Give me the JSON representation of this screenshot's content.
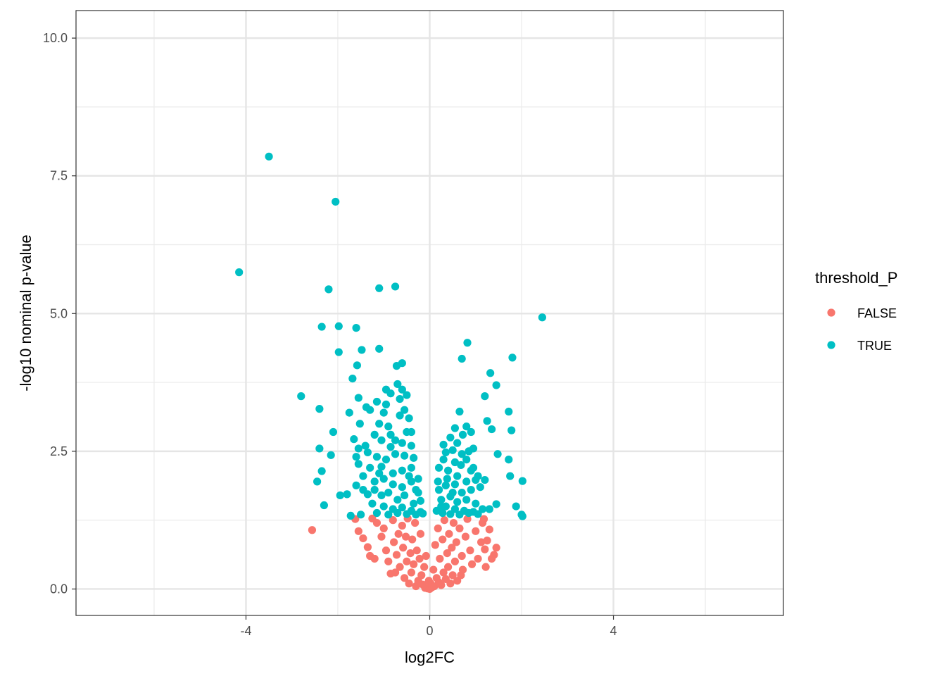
{
  "chart_data": {
    "type": "scatter",
    "title": "",
    "xlabel": "log2FC",
    "ylabel": "-log10 nominal p-value",
    "xlim": [
      -7.7,
      7.7
    ],
    "ylim": [
      -0.48,
      10.5
    ],
    "x_ticks": [
      -4,
      0,
      4
    ],
    "x_tick_labels": [
      "-4",
      "0",
      "4"
    ],
    "x_minor_ticks": [
      -6,
      -2,
      2,
      6
    ],
    "y_ticks": [
      0,
      2.5,
      5,
      7.5,
      10
    ],
    "y_tick_labels": [
      "0.0",
      "2.5",
      "5.0",
      "7.5",
      "10.0"
    ],
    "y_minor_ticks": [
      1.25,
      3.75,
      6.25,
      8.75
    ],
    "grid": true,
    "legend": {
      "title": "threshold_P",
      "position": "right",
      "entries": [
        {
          "label": "FALSE",
          "color": "#F8766D"
        },
        {
          "label": "TRUE",
          "color": "#00BFC4"
        }
      ]
    },
    "series": [
      {
        "name": "FALSE",
        "color": "#F8766D",
        "points": [
          [
            -2.56,
            1.07
          ],
          [
            -1.62,
            1.27
          ],
          [
            -1.55,
            1.05
          ],
          [
            -1.45,
            0.92
          ],
          [
            -1.35,
            0.76
          ],
          [
            -1.3,
            0.6
          ],
          [
            -1.2,
            0.55
          ],
          [
            -1.15,
            1.2
          ],
          [
            -1.05,
            0.95
          ],
          [
            -1.0,
            1.1
          ],
          [
            -0.95,
            0.7
          ],
          [
            -0.9,
            0.5
          ],
          [
            -0.85,
            0.28
          ],
          [
            -0.8,
            1.25
          ],
          [
            -0.78,
            0.85
          ],
          [
            -0.72,
            0.62
          ],
          [
            -0.68,
            1.0
          ],
          [
            -0.65,
            0.4
          ],
          [
            -0.6,
            1.15
          ],
          [
            -0.58,
            0.75
          ],
          [
            -0.55,
            0.2
          ],
          [
            -0.52,
            0.95
          ],
          [
            -0.5,
            0.5
          ],
          [
            -0.48,
            1.28
          ],
          [
            -0.45,
            0.1
          ],
          [
            -0.42,
            0.65
          ],
          [
            -0.4,
            0.3
          ],
          [
            -0.38,
            0.9
          ],
          [
            -0.35,
            0.45
          ],
          [
            -0.32,
            1.2
          ],
          [
            -0.3,
            0.05
          ],
          [
            -0.28,
            0.7
          ],
          [
            -0.25,
            0.15
          ],
          [
            -0.22,
            0.55
          ],
          [
            -0.2,
            1.0
          ],
          [
            -0.18,
            0.25
          ],
          [
            -0.15,
            0.08
          ],
          [
            -0.12,
            0.4
          ],
          [
            -0.1,
            0.02
          ],
          [
            -0.08,
            0.6
          ],
          [
            -0.05,
            0.01
          ],
          [
            -0.02,
            0.15
          ],
          [
            0.0,
            0.0
          ],
          [
            0.02,
            0.1
          ],
          [
            0.05,
            0.03
          ],
          [
            0.08,
            0.35
          ],
          [
            0.1,
            0.05
          ],
          [
            0.12,
            0.8
          ],
          [
            0.15,
            0.2
          ],
          [
            0.18,
            1.1
          ],
          [
            0.2,
            0.12
          ],
          [
            0.22,
            0.55
          ],
          [
            0.25,
            0.07
          ],
          [
            0.28,
            0.9
          ],
          [
            0.3,
            0.3
          ],
          [
            0.32,
            1.25
          ],
          [
            0.35,
            0.18
          ],
          [
            0.38,
            0.65
          ],
          [
            0.4,
            0.4
          ],
          [
            0.42,
            1.0
          ],
          [
            0.45,
            0.1
          ],
          [
            0.48,
            0.75
          ],
          [
            0.5,
            0.25
          ],
          [
            0.52,
            1.2
          ],
          [
            0.55,
            0.5
          ],
          [
            0.58,
            0.85
          ],
          [
            0.6,
            0.15
          ],
          [
            0.65,
            1.1
          ],
          [
            0.7,
            0.6
          ],
          [
            0.72,
            0.35
          ],
          [
            0.78,
            0.95
          ],
          [
            0.82,
            1.27
          ],
          [
            0.88,
            0.7
          ],
          [
            0.92,
            0.45
          ],
          [
            1.0,
            1.05
          ],
          [
            1.05,
            0.55
          ],
          [
            1.12,
            0.85
          ],
          [
            1.15,
            1.2
          ],
          [
            1.2,
            0.72
          ],
          [
            1.25,
            0.88
          ],
          [
            1.3,
            1.08
          ],
          [
            1.35,
            0.55
          ],
          [
            1.4,
            0.62
          ],
          [
            1.45,
            0.75
          ],
          [
            1.18,
            1.27
          ],
          [
            1.22,
            0.4
          ],
          [
            -1.25,
            1.28
          ],
          [
            -0.75,
            0.3
          ],
          [
            0.68,
            0.25
          ]
        ]
      },
      {
        "name": "TRUE",
        "color": "#00BFC4",
        "points": [
          [
            -3.5,
            7.85
          ],
          [
            -2.05,
            7.03
          ],
          [
            -4.15,
            5.75
          ],
          [
            -2.2,
            5.44
          ],
          [
            -1.1,
            5.46
          ],
          [
            -0.75,
            5.49
          ],
          [
            -2.35,
            4.76
          ],
          [
            -1.98,
            4.77
          ],
          [
            -1.6,
            4.74
          ],
          [
            -1.48,
            4.34
          ],
          [
            -1.1,
            4.36
          ],
          [
            -1.98,
            4.3
          ],
          [
            -0.6,
            4.1
          ],
          [
            -0.72,
            4.05
          ],
          [
            -1.58,
            4.06
          ],
          [
            -1.68,
            3.82
          ],
          [
            -2.8,
            3.5
          ],
          [
            -2.4,
            3.27
          ],
          [
            -1.55,
            3.47
          ],
          [
            -1.38,
            3.3
          ],
          [
            -1.3,
            3.25
          ],
          [
            -1.75,
            3.2
          ],
          [
            -1.15,
            3.4
          ],
          [
            -0.95,
            3.62
          ],
          [
            -0.85,
            3.55
          ],
          [
            -0.7,
            3.72
          ],
          [
            -0.6,
            3.62
          ],
          [
            -0.5,
            3.52
          ],
          [
            -0.95,
            3.35
          ],
          [
            -1.0,
            3.2
          ],
          [
            -1.52,
            3.0
          ],
          [
            -1.1,
            3.0
          ],
          [
            -0.9,
            2.95
          ],
          [
            -0.65,
            3.15
          ],
          [
            -0.55,
            3.25
          ],
          [
            -0.45,
            3.1
          ],
          [
            -0.4,
            2.85
          ],
          [
            -2.1,
            2.85
          ],
          [
            -1.65,
            2.72
          ],
          [
            -1.55,
            2.55
          ],
          [
            -1.4,
            2.6
          ],
          [
            -1.2,
            2.8
          ],
          [
            -1.05,
            2.7
          ],
          [
            -0.85,
            2.8
          ],
          [
            -0.6,
            2.65
          ],
          [
            -0.4,
            2.6
          ],
          [
            -2.4,
            2.55
          ],
          [
            -2.15,
            2.43
          ],
          [
            -1.6,
            2.4
          ],
          [
            -1.35,
            2.48
          ],
          [
            -1.15,
            2.4
          ],
          [
            -0.95,
            2.35
          ],
          [
            -0.75,
            2.45
          ],
          [
            -0.55,
            2.42
          ],
          [
            -0.35,
            2.38
          ],
          [
            -1.55,
            2.27
          ],
          [
            -1.3,
            2.2
          ],
          [
            -1.05,
            2.22
          ],
          [
            -0.8,
            2.1
          ],
          [
            -0.6,
            2.15
          ],
          [
            -0.4,
            2.2
          ],
          [
            -0.25,
            2.0
          ],
          [
            -2.35,
            2.14
          ],
          [
            -1.45,
            2.05
          ],
          [
            -1.2,
            1.95
          ],
          [
            -1.0,
            2.0
          ],
          [
            -0.8,
            1.9
          ],
          [
            -0.6,
            1.85
          ],
          [
            -0.4,
            1.95
          ],
          [
            -0.25,
            1.75
          ],
          [
            -2.45,
            1.95
          ],
          [
            -1.6,
            1.88
          ],
          [
            -1.45,
            1.8
          ],
          [
            -1.35,
            1.72
          ],
          [
            -1.2,
            1.8
          ],
          [
            -1.05,
            1.7
          ],
          [
            -0.9,
            1.75
          ],
          [
            -0.7,
            1.62
          ],
          [
            -0.55,
            1.7
          ],
          [
            -0.35,
            1.55
          ],
          [
            -0.2,
            1.6
          ],
          [
            -1.95,
            1.7
          ],
          [
            -1.8,
            1.72
          ],
          [
            -1.25,
            1.55
          ],
          [
            -1.0,
            1.5
          ],
          [
            -0.8,
            1.45
          ],
          [
            -0.6,
            1.48
          ],
          [
            -0.4,
            1.42
          ],
          [
            -0.2,
            1.4
          ],
          [
            -2.3,
            1.52
          ],
          [
            -1.5,
            1.35
          ],
          [
            -1.15,
            1.38
          ],
          [
            -0.9,
            1.35
          ],
          [
            -0.7,
            1.38
          ],
          [
            -0.5,
            1.36
          ],
          [
            -0.3,
            1.35
          ],
          [
            -0.15,
            1.37
          ],
          [
            -1.72,
            1.33
          ],
          [
            -0.85,
            2.58
          ],
          [
            -0.65,
            3.45
          ],
          [
            -0.5,
            2.85
          ],
          [
            -0.45,
            2.05
          ],
          [
            -0.3,
            1.8
          ],
          [
            -0.75,
            2.7
          ],
          [
            -1.1,
            2.1
          ],
          [
            2.45,
            4.93
          ],
          [
            0.82,
            4.47
          ],
          [
            0.7,
            4.18
          ],
          [
            1.8,
            4.2
          ],
          [
            1.32,
            3.92
          ],
          [
            1.45,
            3.7
          ],
          [
            1.2,
            3.5
          ],
          [
            0.65,
            3.22
          ],
          [
            1.72,
            3.22
          ],
          [
            1.25,
            3.05
          ],
          [
            0.55,
            2.92
          ],
          [
            0.8,
            2.95
          ],
          [
            1.35,
            2.9
          ],
          [
            1.78,
            2.88
          ],
          [
            0.9,
            2.85
          ],
          [
            0.72,
            2.8
          ],
          [
            0.45,
            2.75
          ],
          [
            0.6,
            2.65
          ],
          [
            0.3,
            2.62
          ],
          [
            0.95,
            2.55
          ],
          [
            0.85,
            2.5
          ],
          [
            0.7,
            2.45
          ],
          [
            0.5,
            2.52
          ],
          [
            0.35,
            2.48
          ],
          [
            1.48,
            2.45
          ],
          [
            1.72,
            2.35
          ],
          [
            0.8,
            2.35
          ],
          [
            0.55,
            2.3
          ],
          [
            0.3,
            2.35
          ],
          [
            0.2,
            2.2
          ],
          [
            0.68,
            2.25
          ],
          [
            0.9,
            2.15
          ],
          [
            0.4,
            2.15
          ],
          [
            0.6,
            2.05
          ],
          [
            0.95,
            2.2
          ],
          [
            1.05,
            2.05
          ],
          [
            1.75,
            2.05
          ],
          [
            2.02,
            1.96
          ],
          [
            1.2,
            1.98
          ],
          [
            1.0,
            1.98
          ],
          [
            0.8,
            1.95
          ],
          [
            0.55,
            1.9
          ],
          [
            0.35,
            1.88
          ],
          [
            0.2,
            1.8
          ],
          [
            0.7,
            1.75
          ],
          [
            0.9,
            1.8
          ],
          [
            1.1,
            1.85
          ],
          [
            0.45,
            1.68
          ],
          [
            0.25,
            1.62
          ],
          [
            0.6,
            1.58
          ],
          [
            0.8,
            1.62
          ],
          [
            1.0,
            1.55
          ],
          [
            1.45,
            1.54
          ],
          [
            1.88,
            1.5
          ],
          [
            0.35,
            1.5
          ],
          [
            0.55,
            1.45
          ],
          [
            0.75,
            1.42
          ],
          [
            0.95,
            1.4
          ],
          [
            1.15,
            1.45
          ],
          [
            1.3,
            1.45
          ],
          [
            0.15,
            1.42
          ],
          [
            0.28,
            1.38
          ],
          [
            0.45,
            1.36
          ],
          [
            0.65,
            1.35
          ],
          [
            0.85,
            1.38
          ],
          [
            1.05,
            1.36
          ],
          [
            2.0,
            1.35
          ],
          [
            2.02,
            1.32
          ],
          [
            0.18,
            1.95
          ],
          [
            0.38,
            2.0
          ],
          [
            0.5,
            1.75
          ],
          [
            0.25,
            1.5
          ]
        ]
      }
    ]
  }
}
